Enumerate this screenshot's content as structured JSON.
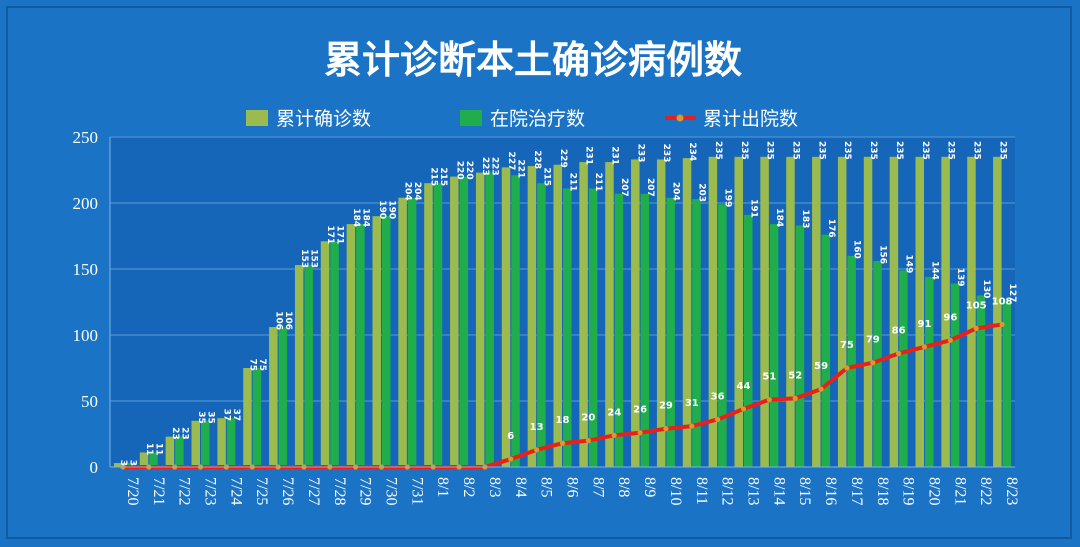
{
  "colors": {
    "background": "#1a73c5",
    "plot_background": "#1565b8",
    "cumulative_bar": "#9cbb4e",
    "hospital_bar": "#1fae4b",
    "discharged_line": "#e8201a",
    "discharged_marker": "#d99a2b"
  },
  "chart_data": {
    "type": "bar",
    "title": "累计诊断本土确诊病例数",
    "legend_position": "top-center",
    "grid": true,
    "ylim": [
      0,
      250
    ],
    "yticks": [
      0,
      50,
      100,
      150,
      200,
      250
    ],
    "categories": [
      "7/20",
      "7/21",
      "7/22",
      "7/23",
      "7/24",
      "7/25",
      "7/26",
      "7/27",
      "7/28",
      "7/29",
      "7/30",
      "7/31",
      "8/1",
      "8/2",
      "8/3",
      "8/4",
      "8/5",
      "8/6",
      "8/7",
      "8/8",
      "8/9",
      "8/10",
      "8/11",
      "8/12",
      "8/13",
      "8/14",
      "8/15",
      "8/16",
      "8/17",
      "8/18",
      "8/19",
      "8/20",
      "8/21",
      "8/22",
      "8/23"
    ],
    "series": [
      {
        "name": "累计确诊数",
        "type": "bar",
        "values": [
          3,
          11,
          23,
          35,
          37,
          75,
          106,
          153,
          171,
          184,
          190,
          204,
          215,
          220,
          223,
          227,
          228,
          229,
          231,
          231,
          233,
          233,
          234,
          235,
          235,
          235,
          235,
          235,
          235,
          235,
          235,
          235,
          235,
          235,
          235
        ]
      },
      {
        "name": "在院治疗数",
        "type": "bar",
        "values": [
          3,
          11,
          23,
          35,
          37,
          75,
          106,
          153,
          171,
          184,
          190,
          204,
          215,
          220,
          223,
          221,
          215,
          211,
          211,
          207,
          207,
          204,
          203,
          199,
          191,
          184,
          183,
          176,
          160,
          156,
          149,
          144,
          139,
          130,
          127
        ]
      },
      {
        "name": "累计出院数",
        "type": "line",
        "values": [
          0,
          0,
          0,
          0,
          0,
          0,
          0,
          0,
          0,
          0,
          0,
          0,
          0,
          0,
          0,
          6,
          13,
          18,
          20,
          24,
          26,
          29,
          31,
          36,
          44,
          51,
          52,
          59,
          75,
          79,
          86,
          91,
          96,
          105,
          108
        ]
      }
    ]
  }
}
